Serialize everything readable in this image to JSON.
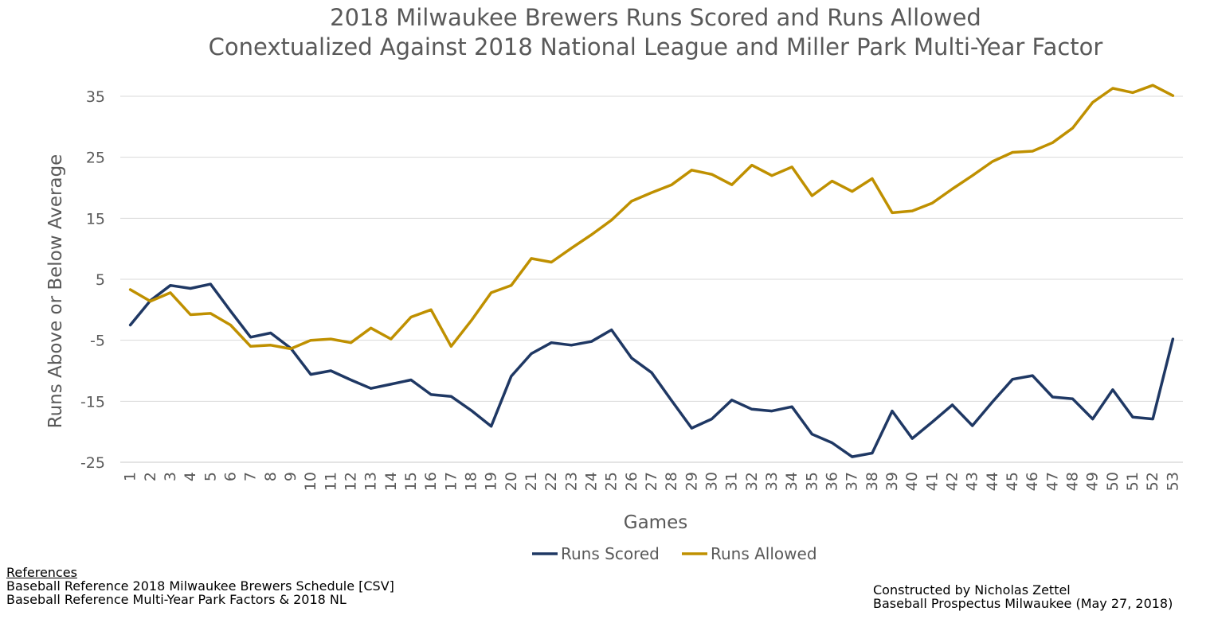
{
  "chart_data": {
    "type": "line",
    "title": [
      "2018 Milwaukee Brewers Runs Scored and Runs Allowed",
      "Conextualized Against 2018 National League and Miller Park Multi-Year Factor"
    ],
    "xlabel": "Games",
    "ylabel": "Runs Above or Below Average",
    "ylim": [
      -25,
      40
    ],
    "yticks": [
      35,
      25,
      15,
      5,
      -5,
      -15,
      -25
    ],
    "x": [
      "1",
      "2",
      "3",
      "4",
      "5",
      "6",
      "7",
      "8",
      "9",
      "10",
      "11",
      "12",
      "13",
      "14",
      "15",
      "16",
      "17",
      "18",
      "19",
      "20",
      "21",
      "22",
      "23",
      "24",
      "25",
      "26",
      "27",
      "28",
      "29",
      "30",
      "31",
      "32",
      "33",
      "34",
      "35",
      "36",
      "37",
      "38",
      "39",
      "40",
      "41",
      "42",
      "43",
      "44",
      "45",
      "46",
      "47",
      "48",
      "49",
      "50",
      "51",
      "52",
      "53"
    ],
    "grid": true,
    "legend": "bottom",
    "series": [
      {
        "name": "Runs Scored",
        "color": "#1f3864",
        "values": [
          -2.5,
          1.5,
          4.0,
          3.5,
          4.2,
          -0.2,
          -4.5,
          -3.8,
          -6.3,
          -10.6,
          -10.0,
          -11.5,
          -12.9,
          -12.2,
          -11.5,
          -13.9,
          -14.2,
          -16.5,
          -19.1,
          -10.9,
          -7.2,
          -5.4,
          -5.8,
          -5.2,
          -3.3,
          -7.9,
          -10.3,
          -14.9,
          -19.4,
          -17.9,
          -14.8,
          -16.3,
          -16.6,
          -15.9,
          -20.4,
          -21.8,
          -24.1,
          -23.5,
          -16.6,
          -21.1,
          -18.4,
          -15.6,
          -19.0,
          -15.1,
          -11.4,
          -10.8,
          -14.3,
          -14.6,
          -17.9,
          -13.1,
          -17.6,
          -17.9,
          -4.8
        ]
      },
      {
        "name": "Runs Allowed",
        "color": "#bf9000",
        "values": [
          3.3,
          1.4,
          2.8,
          -0.8,
          -0.6,
          -2.5,
          -6.0,
          -5.8,
          -6.4,
          -5.0,
          -4.8,
          -5.4,
          -3.0,
          -4.8,
          -1.2,
          0.0,
          -6.0,
          -1.8,
          2.8,
          4.0,
          8.4,
          7.8,
          10.1,
          12.3,
          14.7,
          17.8,
          19.2,
          20.5,
          22.9,
          22.2,
          20.5,
          23.7,
          22.0,
          23.4,
          18.7,
          21.1,
          19.4,
          21.5,
          15.9,
          16.2,
          17.5,
          19.8,
          22.0,
          24.3,
          25.8,
          26.0,
          27.4,
          29.8,
          34.0,
          36.3,
          35.6,
          36.8,
          35.1
        ]
      }
    ]
  },
  "references": {
    "heading": "References",
    "lines": [
      "Baseball Reference 2018 Milwaukee Brewers Schedule [CSV]",
      "Baseball Reference Multi-Year Park Factors & 2018 NL"
    ]
  },
  "credits": {
    "lines": [
      "Constructed by Nicholas Zettel",
      "Baseball Prospectus Milwaukee (May 27, 2018)"
    ]
  }
}
